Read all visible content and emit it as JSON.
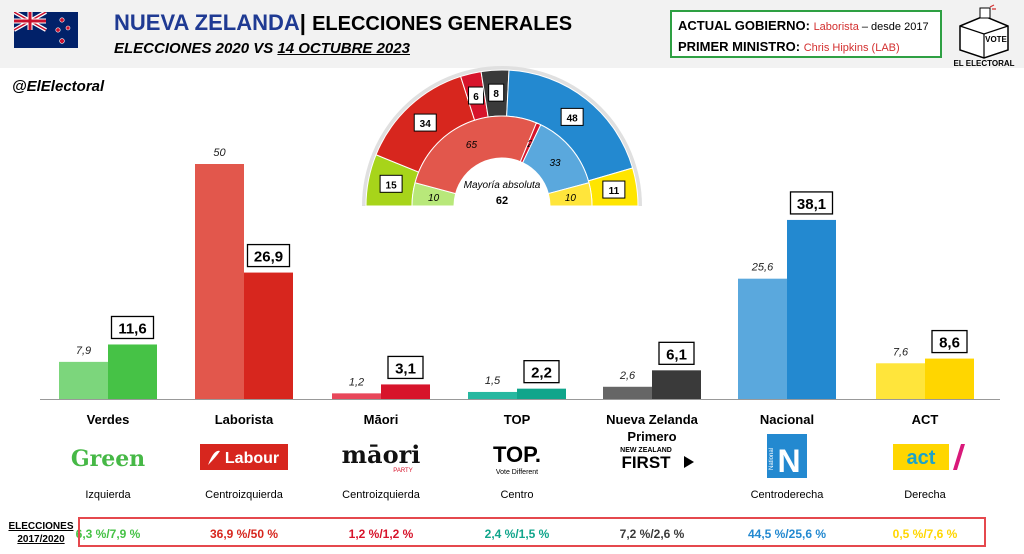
{
  "header": {
    "title": "NUEVA ZELANDA",
    "separator": "|",
    "title_sub": "ELECCIONES GENERALES",
    "subtitle_prefix": "ELECCIONES 2020 VS",
    "subtitle_date": "14 OCTUBRE 2023",
    "handle": "@ElElectoral"
  },
  "government": {
    "label1": "ACTUAL GOBIERNO:",
    "value1": "Laborista",
    "since": " – desde 2017",
    "label2": "PRIMER MINISTRO:",
    "value2": "Chris Hipkins (LAB)"
  },
  "brand": {
    "vote": "VOTE",
    "name": "EL ELECTORAL"
  },
  "colors": {
    "greens_light": "#7cd67c",
    "greens_dark": "#46c246",
    "labour_light": "#e2574c",
    "labour_dark": "#d7261e",
    "maori_light": "#e8475a",
    "maori_dark": "#d7142b",
    "top_light": "#27b8a0",
    "top_dark": "#10a58b",
    "nzfirst_light": "#666666",
    "nzfirst_dark": "#3a3a3a",
    "national_light": "#5aa8dd",
    "national_dark": "#2389d0",
    "act_light": "#ffe53b",
    "act_dark": "#ffd600"
  },
  "chart_data": {
    "type": "bar",
    "categories": [
      "Verdes",
      "Laborista",
      "Māori",
      "TOP",
      "Nueva Zelanda Primero",
      "Nacional",
      "ACT"
    ],
    "series": [
      {
        "values": [
          7.9,
          50,
          1.2,
          1.5,
          2.6,
          25.6,
          7.6
        ]
      },
      {
        "values": [
          11.6,
          26.9,
          3.1,
          2.2,
          6.1,
          38.1,
          8.6
        ]
      }
    ],
    "ylim": [
      0,
      55
    ],
    "ideology": [
      "Izquierda",
      "Centroizquierda",
      "Centroizquierda",
      "Centro",
      "",
      "Centroderecha",
      "Derecha"
    ],
    "logos": [
      "Green",
      "Labour",
      "māori",
      "TOP.",
      "FIRST",
      "N",
      "act"
    ],
    "logo_subs": [
      "",
      "",
      "PARTY",
      "Vote Different",
      "NEW ZEALAND",
      "National",
      ""
    ],
    "elections_2017_2020": [
      "6,3 %/7,9 %",
      "36,9 %/50 %",
      "1,2 %/1,2 %",
      "2,4 %/1,5 %",
      "7,2 %/2,6 %",
      "44,5 %/25,6 %",
      "0,5 %/7,6 %"
    ],
    "table_label": "ELECCIONES 2017/2020",
    "parliament": {
      "majority_label": "Mayoría absoluta",
      "majority_seats": 62,
      "inner": [
        {
          "party": "Verdes",
          "seats": 10
        },
        {
          "party": "Laborista",
          "seats": 65
        },
        {
          "party": "Māori",
          "seats": 2
        },
        {
          "party": "Nacional",
          "seats": 33
        },
        {
          "party": "ACT",
          "seats": 10
        }
      ],
      "outer": [
        {
          "party": "Verdes",
          "seats": 15
        },
        {
          "party": "Laborista",
          "seats": 34
        },
        {
          "party": "Māori",
          "seats": 6
        },
        {
          "party": "Nueva Zelanda Primero",
          "seats": 8
        },
        {
          "party": "Nacional",
          "seats": 48
        },
        {
          "party": "ACT",
          "seats": 11
        }
      ]
    }
  }
}
